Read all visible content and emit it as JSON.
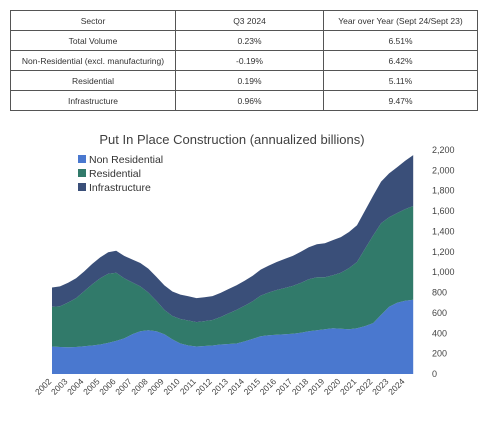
{
  "table": {
    "headers": [
      "Sector",
      "Q3 2024",
      "Year over Year (Sept 24/Sept 23)"
    ],
    "rows": [
      [
        "Total Volume",
        "0.23%",
        "6.51%"
      ],
      [
        "Non-Residential (excl. manufacturing)",
        "-0.19%",
        "6.42%"
      ],
      [
        "Residential",
        "0.19%",
        "5.11%"
      ],
      [
        "Infrastructure",
        "0.96%",
        "9.47%"
      ]
    ]
  },
  "chart_data": {
    "type": "area",
    "stacked": true,
    "title": "Put In Place Construction (annualized billions)",
    "xlabel": "",
    "ylabel": "",
    "ylim": [
      0,
      2200
    ],
    "yticks": [
      "0",
      "200",
      "400",
      "600",
      "800",
      "1,000",
      "1,200",
      "1,400",
      "1,600",
      "1,800",
      "2,000",
      "2,200"
    ],
    "xticks": [
      "2002",
      "2003",
      "2004",
      "2005",
      "2006",
      "2007",
      "2008",
      "2009",
      "2010",
      "2011",
      "2012",
      "2013",
      "2014",
      "2015",
      "2016",
      "2017",
      "2018",
      "2019",
      "2020",
      "2021",
      "2022",
      "2023",
      "2024"
    ],
    "legend_position": "top-left",
    "x": [
      2002.0,
      2002.5,
      2003.0,
      2003.5,
      2004.0,
      2004.5,
      2005.0,
      2005.5,
      2006.0,
      2006.5,
      2007.0,
      2007.5,
      2008.0,
      2008.5,
      2009.0,
      2009.5,
      2010.0,
      2010.5,
      2011.0,
      2011.5,
      2012.0,
      2012.5,
      2013.0,
      2013.5,
      2014.0,
      2014.5,
      2015.0,
      2015.5,
      2016.0,
      2016.5,
      2017.0,
      2017.5,
      2018.0,
      2018.5,
      2019.0,
      2019.5,
      2020.0,
      2020.5,
      2021.0,
      2021.5,
      2022.0,
      2022.5,
      2023.0,
      2023.5,
      2024.0,
      2024.5
    ],
    "series": [
      {
        "name": "Non Residential",
        "color": "#4a78cf",
        "values": [
          270,
          265,
          262,
          265,
          272,
          280,
          290,
          305,
          325,
          350,
          390,
          420,
          430,
          420,
          390,
          340,
          300,
          280,
          270,
          275,
          280,
          290,
          295,
          300,
          320,
          345,
          370,
          380,
          385,
          390,
          395,
          405,
          420,
          430,
          440,
          450,
          445,
          440,
          450,
          470,
          500,
          580,
          660,
          700,
          720,
          730
        ]
      },
      {
        "name": "Residential",
        "color": "#317a6a",
        "values": [
          390,
          400,
          440,
          480,
          540,
          600,
          650,
          680,
          670,
          590,
          510,
          440,
          370,
          300,
          240,
          230,
          240,
          245,
          240,
          245,
          250,
          270,
          300,
          330,
          350,
          370,
          400,
          420,
          440,
          455,
          470,
          490,
          510,
          520,
          510,
          520,
          550,
          600,
          650,
          760,
          860,
          900,
          880,
          880,
          900,
          920
        ]
      },
      {
        "name": "Infrastructure",
        "color": "#3a4f79",
        "values": [
          190,
          195,
          195,
          195,
          195,
          200,
          205,
          210,
          215,
          220,
          225,
          230,
          235,
          235,
          240,
          240,
          240,
          238,
          235,
          233,
          235,
          237,
          240,
          242,
          245,
          250,
          255,
          265,
          275,
          285,
          295,
          305,
          315,
          325,
          335,
          345,
          350,
          355,
          360,
          375,
          390,
          410,
          430,
          450,
          475,
          500
        ]
      }
    ]
  }
}
